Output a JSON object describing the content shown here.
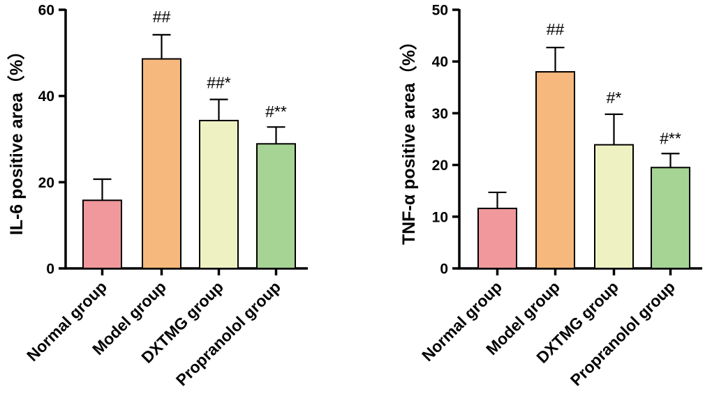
{
  "chart_data": [
    {
      "type": "bar",
      "ylabel": "IL-6 positive area（%）",
      "ylim": [
        0,
        60
      ],
      "yticks": [
        0,
        20,
        40,
        60
      ],
      "categories": [
        "Normal group",
        "Model group",
        "DXTMG group",
        "Propranolol group"
      ],
      "values": [
        15.8,
        48.6,
        34.3,
        28.9
      ],
      "errors": [
        4.9,
        5.6,
        4.9,
        3.9
      ],
      "significance": [
        "",
        "##",
        "##*",
        "#**"
      ],
      "colors": [
        "#f0989c",
        "#f6b87c",
        "#eef1c2",
        "#a6d494"
      ]
    },
    {
      "type": "bar",
      "ylabel": "TNF-α positive area（%）",
      "ylim": [
        0,
        50
      ],
      "yticks": [
        0,
        10,
        20,
        30,
        40,
        50
      ],
      "categories": [
        "Normal group",
        "Model group",
        "DXTMG group",
        "Propranolol group"
      ],
      "values": [
        11.6,
        38.0,
        23.9,
        19.5
      ],
      "errors": [
        3.1,
        4.7,
        5.9,
        2.7
      ],
      "significance": [
        "",
        "##",
        "#*",
        "#**"
      ],
      "colors": [
        "#f0989c",
        "#f6b87c",
        "#eef1c2",
        "#a6d494"
      ]
    }
  ]
}
